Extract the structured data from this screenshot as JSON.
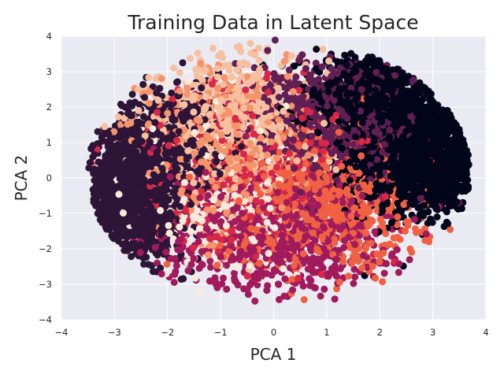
{
  "chart_data": {
    "type": "scatter",
    "title": "Training Data in Latent Space",
    "xlabel": "PCA 1",
    "ylabel": "PCA 2",
    "xlim": [
      -4,
      4
    ],
    "ylim": [
      -4,
      4
    ],
    "xticks": [
      "−4",
      "−3",
      "−2",
      "−1",
      "0",
      "1",
      "2",
      "3",
      "4"
    ],
    "yticks": [
      "4",
      "3",
      "2",
      "1",
      "0",
      "−1",
      "−2",
      "−3",
      "−4"
    ],
    "xtick_values": [
      -4,
      -3,
      -2,
      -1,
      0,
      1,
      2,
      3,
      4
    ],
    "ytick_values": [
      4,
      3,
      2,
      1,
      0,
      -1,
      -2,
      -3,
      -4
    ],
    "grid": true,
    "background": "#eaeaf2",
    "gridcolor": "#ffffff",
    "colormap": [
      "#03051a",
      "#2e1538",
      "#611f53",
      "#a11a5b",
      "#d92847",
      "#f06043",
      "#f5936a",
      "#f6c0a0",
      "#faebdd"
    ],
    "clusters": [
      {
        "color": "#03051a",
        "center": [
          2.8,
          0.6
        ],
        "spread": [
          0.7,
          0.8
        ],
        "count": 3.1
      },
      {
        "color": "#03051a",
        "center": [
          1.9,
          2.2
        ],
        "spread": [
          0.7,
          0.6
        ],
        "count": 1.8
      },
      {
        "color": "#2e1538",
        "center": [
          -2.6,
          -0.4
        ],
        "spread": [
          0.45,
          0.9
        ],
        "count": 3.0
      },
      {
        "color": "#2e1538",
        "center": [
          -1.8,
          0.9
        ],
        "spread": [
          0.45,
          0.8
        ],
        "count": 1.2
      },
      {
        "color": "#611f53",
        "center": [
          1.2,
          1.6
        ],
        "spread": [
          0.8,
          0.9
        ],
        "count": 1.4
      },
      {
        "color": "#a11a5b",
        "center": [
          0.0,
          -1.4
        ],
        "spread": [
          1.1,
          1.0
        ],
        "count": 1.6
      },
      {
        "color": "#d92847",
        "center": [
          -0.4,
          0.4
        ],
        "spread": [
          1.1,
          1.1
        ],
        "count": 1.1
      },
      {
        "color": "#f06043",
        "center": [
          0.9,
          -0.7
        ],
        "spread": [
          1.0,
          0.9
        ],
        "count": 1.6
      },
      {
        "color": "#f5936a",
        "center": [
          -0.9,
          0.9
        ],
        "spread": [
          0.8,
          1.0
        ],
        "count": 1.3
      },
      {
        "color": "#f6c0a0",
        "center": [
          -0.8,
          1.4
        ],
        "spread": [
          0.8,
          1.0
        ],
        "count": 1.5
      },
      {
        "color": "#faebdd",
        "center": [
          -1.0,
          -0.3
        ],
        "spread": [
          0.8,
          1.1
        ],
        "count": 0.9
      }
    ]
  }
}
